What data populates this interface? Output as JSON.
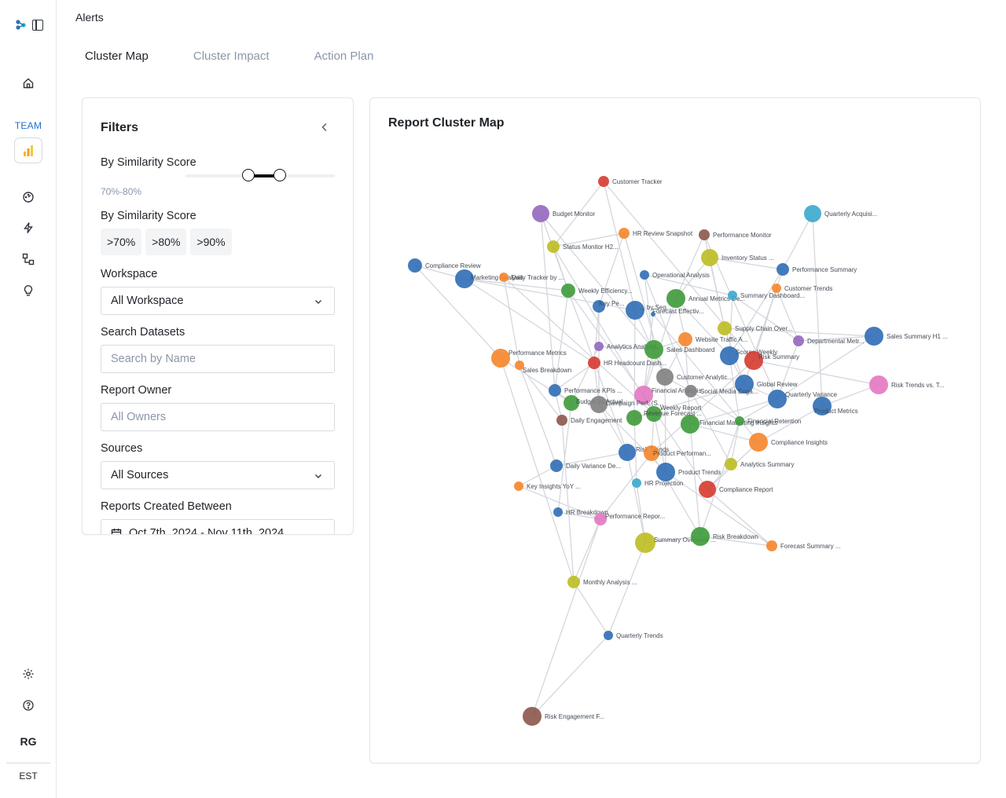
{
  "header": {
    "title": "Alerts"
  },
  "tabs": [
    {
      "label": "Cluster Map",
      "active": true
    },
    {
      "label": "Cluster Impact",
      "active": false
    },
    {
      "label": "Action Plan",
      "active": false
    }
  ],
  "sidebar": {
    "team_label": "TEAM",
    "user_initials": "RG",
    "timezone": "EST",
    "icons": [
      "home-icon",
      "dashboard-icon",
      "bolt-icon",
      "flow-icon",
      "lightbulb-icon",
      "settings-icon",
      "help-icon"
    ]
  },
  "filters": {
    "title": "Filters",
    "similarity_slider": {
      "label": "By Similarity Score",
      "range_text": "70%-80%",
      "min": 0.7,
      "max": 0.8
    },
    "similarity_chips": {
      "label": "By Similarity Score",
      "options": [
        ">70%",
        ">80%",
        ">90%"
      ]
    },
    "workspace": {
      "label": "Workspace",
      "value": "All Workspace"
    },
    "search": {
      "label": "Search Datasets",
      "placeholder": "Search by Name"
    },
    "owner": {
      "label": "Report Owner",
      "placeholder": "All Owners"
    },
    "sources": {
      "label": "Sources",
      "value": "All Sources"
    },
    "created": {
      "label": "Reports Created Between",
      "value": "Oct 7th, 2024 - Nov 11th, 2024"
    }
  },
  "map": {
    "title": "Report Cluster Map",
    "colors": {
      "red": "#d63a2f",
      "purple": "#9467bd",
      "orange": "#f5852a",
      "brown": "#8c564b",
      "olive": "#bcbd22",
      "blue": "#2f6db5",
      "cyan": "#3aa8cc",
      "green": "#3e9a3a",
      "gray": "#7f7f7f",
      "pink": "#e377c2"
    },
    "nodes": [
      {
        "label": "Customer Tracker",
        "color": "red"
      },
      {
        "label": "Budget Monitor",
        "color": "purple"
      },
      {
        "label": "HR Review Snapshot",
        "color": "orange"
      },
      {
        "label": "Performance Monitor",
        "color": "brown"
      },
      {
        "label": "Quarterly Acquisi...",
        "color": "cyan"
      },
      {
        "label": "Status Monitor H2...",
        "color": "olive"
      },
      {
        "label": "Inventory Status ...",
        "color": "olive"
      },
      {
        "label": "Compliance Review",
        "color": "blue"
      },
      {
        "label": "Marketing Analysis",
        "color": "blue"
      },
      {
        "label": "Daily Tracker by ...",
        "color": "orange"
      },
      {
        "label": "Performance Summary",
        "color": "blue"
      },
      {
        "label": "Operational Analysis",
        "color": "blue"
      },
      {
        "label": "Customer Trends",
        "color": "orange"
      },
      {
        "label": "Weekly Efficiency...",
        "color": "green"
      },
      {
        "label": "Annual Metrics De...",
        "color": "green"
      },
      {
        "label": "Summary Dashboard...",
        "color": "cyan"
      },
      {
        "label": "Key Pe...",
        "color": "blue"
      },
      {
        "label": "... by Seg...",
        "color": "blue"
      },
      {
        "label": "Forecast Effectiv...",
        "color": "blue"
      },
      {
        "label": "Supply Chain Over...",
        "color": "olive"
      },
      {
        "label": "Website Traffic A...",
        "color": "orange"
      },
      {
        "label": "Departmental Metr...",
        "color": "purple"
      },
      {
        "label": "Sales Summary H1 ...",
        "color": "blue"
      },
      {
        "label": "Analytics Analysis",
        "color": "purple"
      },
      {
        "label": "Sales Dashboard",
        "color": "green"
      },
      {
        "label": "Performance Metrics",
        "color": "orange"
      },
      {
        "label": "Sales Breakdown",
        "color": "orange"
      },
      {
        "label": "HR Headcount Dash...",
        "color": "red"
      },
      {
        "label": "Scores Weekly",
        "color": "blue"
      },
      {
        "label": "Risk Summary",
        "color": "red"
      },
      {
        "label": "Customer Analytic...",
        "color": "gray"
      },
      {
        "label": "Global Review",
        "color": "blue"
      },
      {
        "label": "Risk Trends vs. T...",
        "color": "pink"
      },
      {
        "label": "Performance KPIs ...",
        "color": "blue"
      },
      {
        "label": "Financial Analysis",
        "color": "pink"
      },
      {
        "label": "Social Media Enga...",
        "color": "gray"
      },
      {
        "label": "Quarterly Variance",
        "color": "blue"
      },
      {
        "label": "Product Metrics",
        "color": "blue"
      },
      {
        "label": "Budget vs Actual",
        "color": "green"
      },
      {
        "label": "Campaign Perf. (S...",
        "color": "gray"
      },
      {
        "label": "Weekly Report",
        "color": "green"
      },
      {
        "label": "Revenue Forecast ...",
        "color": "green"
      },
      {
        "label": "Daily Engagement",
        "color": "brown"
      },
      {
        "label": "Financial Marketing Insights",
        "color": "green"
      },
      {
        "label": "Financial Retention",
        "color": "green"
      },
      {
        "label": "Compliance Insights",
        "color": "orange"
      },
      {
        "label": "Risk Trends",
        "color": "blue"
      },
      {
        "label": "Product Performan...",
        "color": "orange"
      },
      {
        "label": "Daily Variance De...",
        "color": "blue"
      },
      {
        "label": "Analytics Summary",
        "color": "olive"
      },
      {
        "label": "Product Trends",
        "color": "blue"
      },
      {
        "label": "Key Insights YoY ...",
        "color": "orange"
      },
      {
        "label": "HR Projection",
        "color": "cyan"
      },
      {
        "label": "Compliance Report",
        "color": "red"
      },
      {
        "label": "HR Breakdown",
        "color": "blue"
      },
      {
        "label": "Performance Repor...",
        "color": "pink"
      },
      {
        "label": "Summary Overview ...",
        "color": "olive"
      },
      {
        "label": "Risk Breakdown",
        "color": "green"
      },
      {
        "label": "Forecast Summary ...",
        "color": "orange"
      },
      {
        "label": "Monthly Analysis ...",
        "color": "olive"
      },
      {
        "label": "Quarterly Trends",
        "color": "blue"
      },
      {
        "label": "Risk Engagement F...",
        "color": "brown"
      }
    ]
  }
}
